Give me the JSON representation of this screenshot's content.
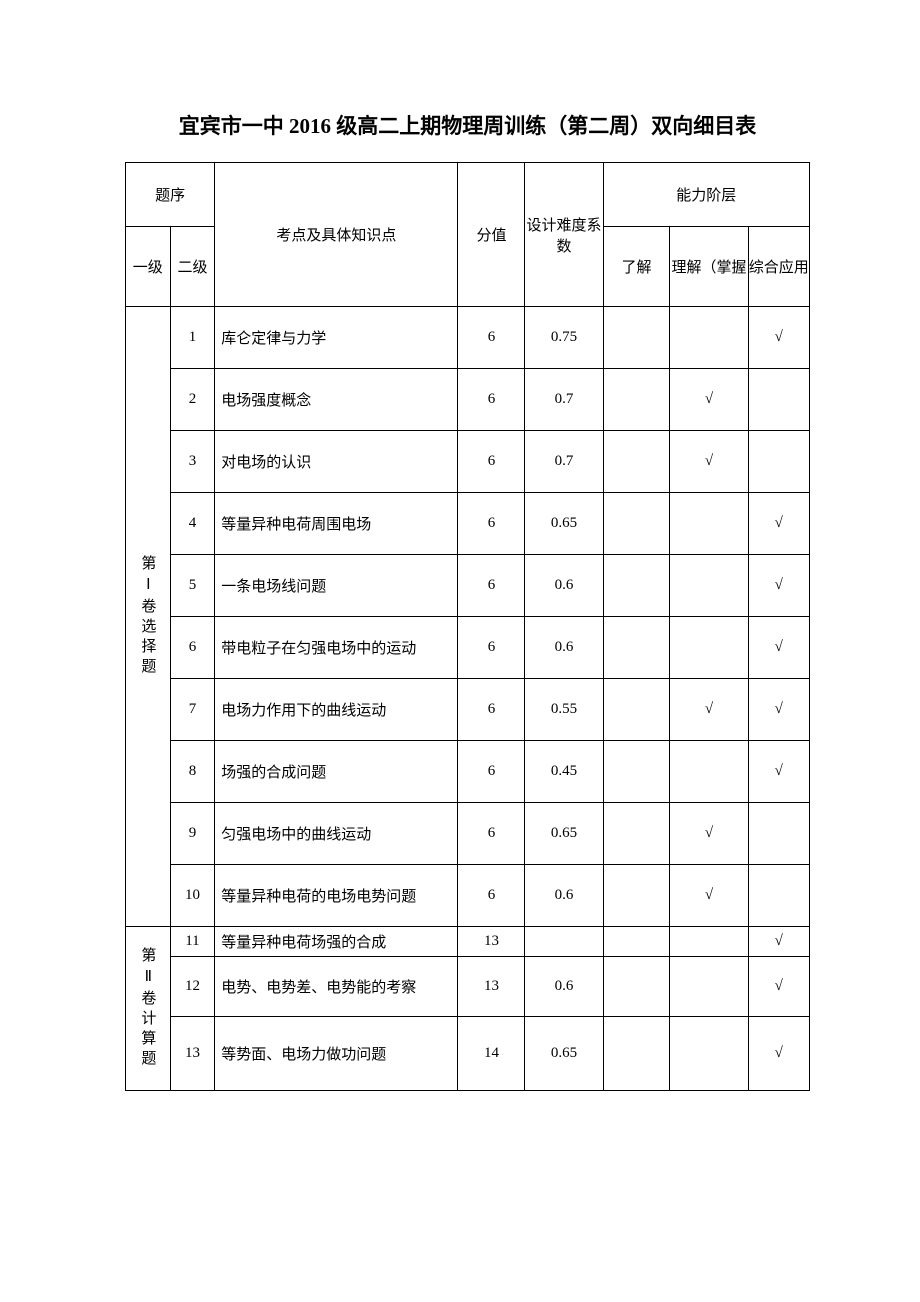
{
  "title": "宜宾市一中 2016 级高二上期物理周训练（第二周）双向细目表",
  "headers": {
    "seq": "题序",
    "level1": "一级",
    "level2": "二级",
    "topic": "考点及具体知识点",
    "score": "分值",
    "difficulty": "设计难度系数",
    "ability": "能力阶层",
    "a1": "了解",
    "a2": "理解（掌握",
    "a3": "综合应用"
  },
  "section1_label": "第Ⅰ卷选择题",
  "section2_label": "第Ⅱ卷计算题",
  "check": "√",
  "rows": [
    {
      "n": "1",
      "topic": "库仑定律与力学",
      "score": "6",
      "diff": "0.75",
      "a1": "",
      "a2": "",
      "a3": "√"
    },
    {
      "n": "2",
      "topic": "电场强度概念",
      "score": "6",
      "diff": "0.7",
      "a1": "",
      "a2": "√",
      "a3": ""
    },
    {
      "n": "3",
      "topic": "对电场的认识",
      "score": "6",
      "diff": "0.7",
      "a1": "",
      "a2": "√",
      "a3": ""
    },
    {
      "n": "4",
      "topic": "等量异种电荷周围电场",
      "score": "6",
      "diff": "0.65",
      "a1": "",
      "a2": "",
      "a3": "√"
    },
    {
      "n": "5",
      "topic": "一条电场线问题",
      "score": "6",
      "diff": "0.6",
      "a1": "",
      "a2": "",
      "a3": "√"
    },
    {
      "n": "6",
      "topic": "带电粒子在匀强电场中的运动",
      "score": "6",
      "diff": "0.6",
      "a1": "",
      "a2": "",
      "a3": "√"
    },
    {
      "n": "7",
      "topic": "电场力作用下的曲线运动",
      "score": "6",
      "diff": "0.55",
      "a1": "",
      "a2": "√",
      "a3": "√"
    },
    {
      "n": "8",
      "topic": "场强的合成问题",
      "score": "6",
      "diff": "0.45",
      "a1": "",
      "a2": "",
      "a3": "√"
    },
    {
      "n": "9",
      "topic": "匀强电场中的曲线运动",
      "score": "6",
      "diff": "0.65",
      "a1": "",
      "a2": "√",
      "a3": ""
    },
    {
      "n": "10",
      "topic": "等量异种电荷的电场电势问题",
      "score": "6",
      "diff": "0.6",
      "a1": "",
      "a2": "√",
      "a3": ""
    },
    {
      "n": "11",
      "topic": "等量异种电荷场强的合成",
      "score": "13",
      "diff": "",
      "a1": "",
      "a2": "",
      "a3": "√"
    },
    {
      "n": "12",
      "topic": "电势、电势差、电势能的考察",
      "score": "13",
      "diff": "0.6",
      "a1": "",
      "a2": "",
      "a3": "√"
    },
    {
      "n": "13",
      "topic": "等势面、电场力做功问题",
      "score": "14",
      "diff": "0.65",
      "a1": "",
      "a2": "",
      "a3": "√"
    }
  ]
}
